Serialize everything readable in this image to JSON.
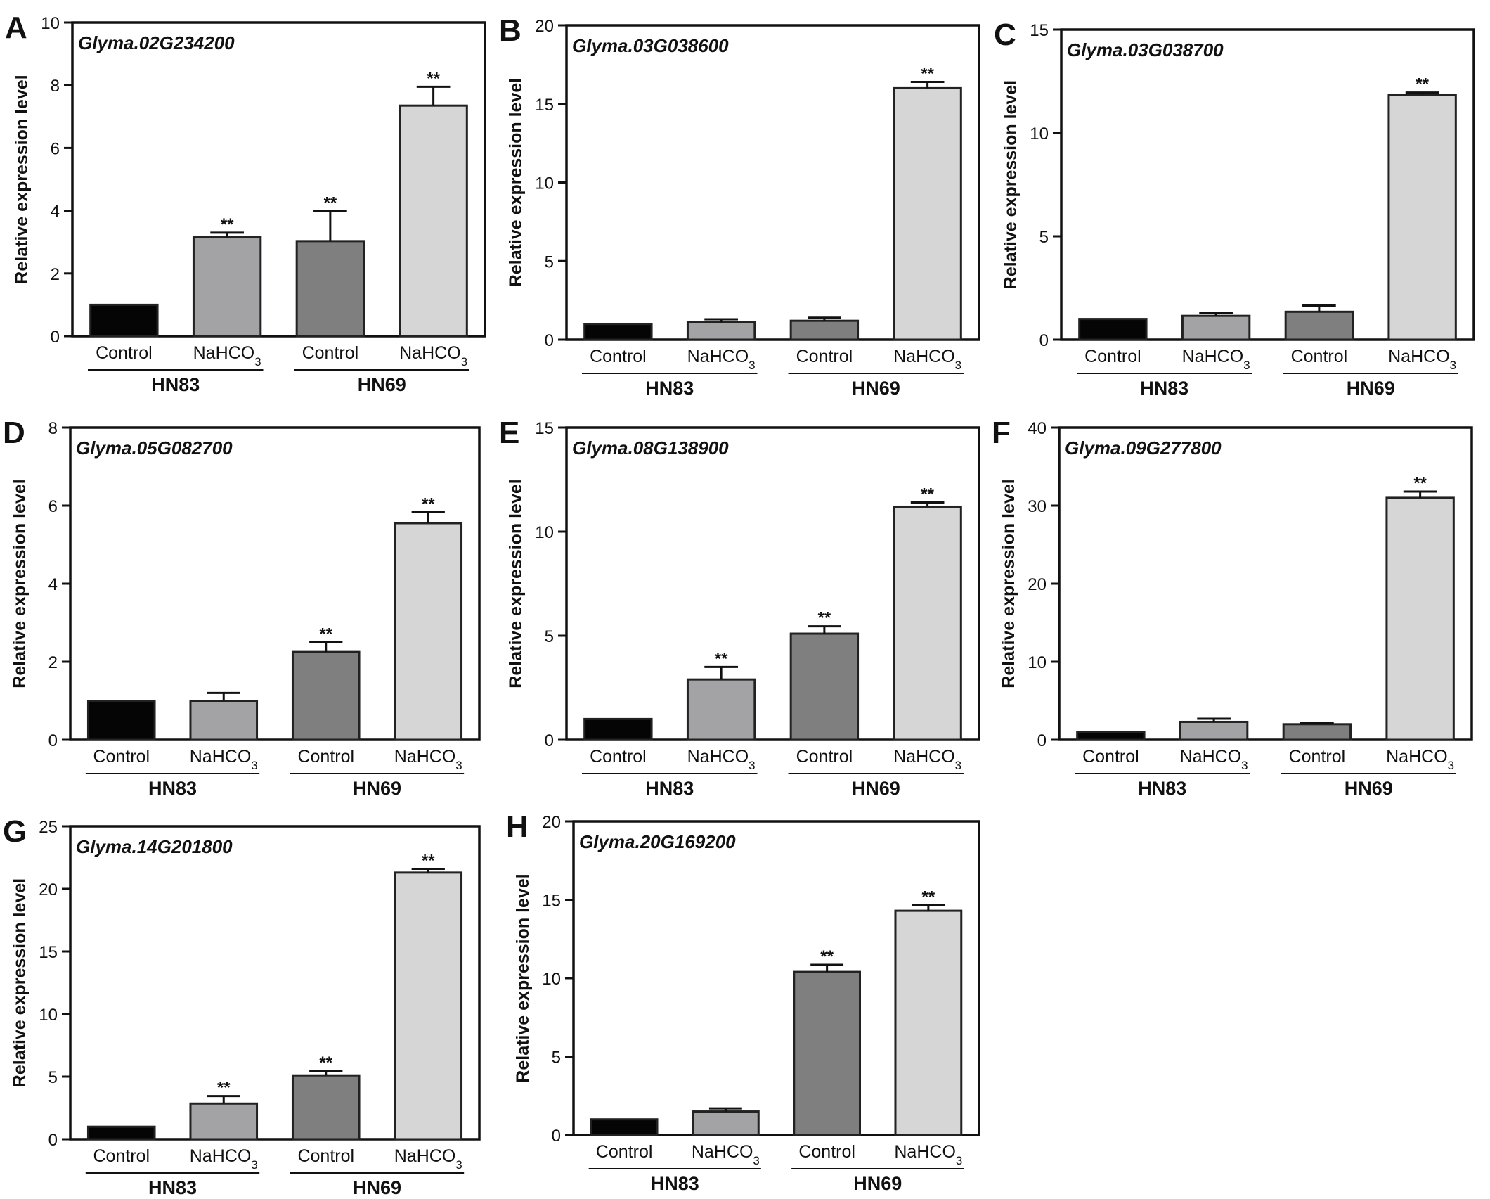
{
  "colors": {
    "axis": "#111111",
    "bar_stroke": "#222222",
    "hn83_control": "#050505",
    "hn83_nahco3": "#a3a3a6",
    "hn69_control": "#7f7f7f",
    "hn69_nahco3": "#d6d6d6"
  },
  "chart_data": [
    {
      "panel_label": "A",
      "type": "bar",
      "title": "Glyma.02G234200",
      "ylabel": "Relative expression level",
      "ylim": [
        0,
        10
      ],
      "yticks": [
        "0",
        "2",
        "4",
        "6",
        "8",
        "10"
      ],
      "categories": [
        "Control",
        "NaHCO3",
        "Control",
        "NaHCO3"
      ],
      "groups": [
        "HN83",
        "HN69"
      ],
      "values": [
        1.0,
        3.15,
        3.03,
        7.35
      ],
      "errors": [
        0.0,
        0.15,
        0.95,
        0.6
      ],
      "significance": [
        "",
        "**",
        "**",
        "**"
      ]
    },
    {
      "panel_label": "B",
      "type": "bar",
      "title": "Glyma.03G038600",
      "ylabel": "Relative expression level",
      "ylim": [
        0,
        20
      ],
      "yticks": [
        "0",
        "5",
        "10",
        "15",
        "20"
      ],
      "categories": [
        "Control",
        "NaHCO3",
        "Control",
        "NaHCO3"
      ],
      "groups": [
        "HN83",
        "HN69"
      ],
      "values": [
        1.0,
        1.1,
        1.2,
        16.0
      ],
      "errors": [
        0.0,
        0.2,
        0.2,
        0.4
      ],
      "significance": [
        "",
        "",
        "",
        "**"
      ]
    },
    {
      "panel_label": "C",
      "type": "bar",
      "title": "Glyma.03G038700",
      "ylabel": "Relative expression level",
      "ylim": [
        0,
        15
      ],
      "yticks": [
        "0",
        "5",
        "10",
        "15"
      ],
      "categories": [
        "Control",
        "NaHCO3",
        "Control",
        "NaHCO3"
      ],
      "groups": [
        "HN83",
        "HN69"
      ],
      "values": [
        1.0,
        1.15,
        1.35,
        11.85
      ],
      "errors": [
        0.0,
        0.15,
        0.3,
        0.1
      ],
      "significance": [
        "",
        "",
        "",
        "**"
      ]
    },
    {
      "panel_label": "D",
      "type": "bar",
      "title": "Glyma.05G082700",
      "ylabel": "Relative expression level",
      "ylim": [
        0,
        8
      ],
      "yticks": [
        "0",
        "2",
        "4",
        "6",
        "8"
      ],
      "categories": [
        "Control",
        "NaHCO3",
        "Control",
        "NaHCO3"
      ],
      "groups": [
        "HN83",
        "HN69"
      ],
      "values": [
        1.0,
        1.0,
        2.25,
        5.55
      ],
      "errors": [
        0.0,
        0.2,
        0.25,
        0.28
      ],
      "significance": [
        "",
        "",
        "**",
        "**"
      ]
    },
    {
      "panel_label": "E",
      "type": "bar",
      "title": "Glyma.08G138900",
      "ylabel": "Relative expression level",
      "ylim": [
        0,
        15
      ],
      "yticks": [
        "0",
        "5",
        "10",
        "15"
      ],
      "categories": [
        "Control",
        "NaHCO3",
        "Control",
        "NaHCO3"
      ],
      "groups": [
        "HN83",
        "HN69"
      ],
      "values": [
        1.0,
        2.9,
        5.1,
        11.2
      ],
      "errors": [
        0.0,
        0.6,
        0.35,
        0.2
      ],
      "significance": [
        "",
        "**",
        "**",
        "**"
      ]
    },
    {
      "panel_label": "F",
      "type": "bar",
      "title": "Glyma.09G277800",
      "ylabel": "Relative expression level",
      "ylim": [
        0,
        40
      ],
      "yticks": [
        "0",
        "10",
        "20",
        "30",
        "40"
      ],
      "categories": [
        "Control",
        "NaHCO3",
        "Control",
        "NaHCO3"
      ],
      "groups": [
        "HN83",
        "HN69"
      ],
      "values": [
        1.0,
        2.3,
        2.0,
        31.0
      ],
      "errors": [
        0.0,
        0.4,
        0.2,
        0.8
      ],
      "significance": [
        "",
        "",
        "",
        "**"
      ]
    },
    {
      "panel_label": "G",
      "type": "bar",
      "title": "Glyma.14G201800",
      "ylabel": "Relative expression level",
      "ylim": [
        0,
        25
      ],
      "yticks": [
        "0",
        "5",
        "10",
        "15",
        "20",
        "25"
      ],
      "categories": [
        "Control",
        "NaHCO3",
        "Control",
        "NaHCO3"
      ],
      "groups": [
        "HN83",
        "HN69"
      ],
      "values": [
        1.0,
        2.85,
        5.1,
        21.3
      ],
      "errors": [
        0.0,
        0.6,
        0.35,
        0.3
      ],
      "significance": [
        "",
        "**",
        "**",
        "**"
      ]
    },
    {
      "panel_label": "H",
      "type": "bar",
      "title": "Glyma.20G169200",
      "ylabel": "Relative expression level",
      "ylim": [
        0,
        20
      ],
      "yticks": [
        "0",
        "5",
        "10",
        "15",
        "20"
      ],
      "categories": [
        "Control",
        "NaHCO3",
        "Control",
        "NaHCO3"
      ],
      "groups": [
        "HN83",
        "HN69"
      ],
      "values": [
        1.0,
        1.5,
        10.4,
        14.3
      ],
      "errors": [
        0.0,
        0.2,
        0.45,
        0.35
      ],
      "significance": [
        "",
        "",
        "**",
        "**"
      ]
    }
  ]
}
